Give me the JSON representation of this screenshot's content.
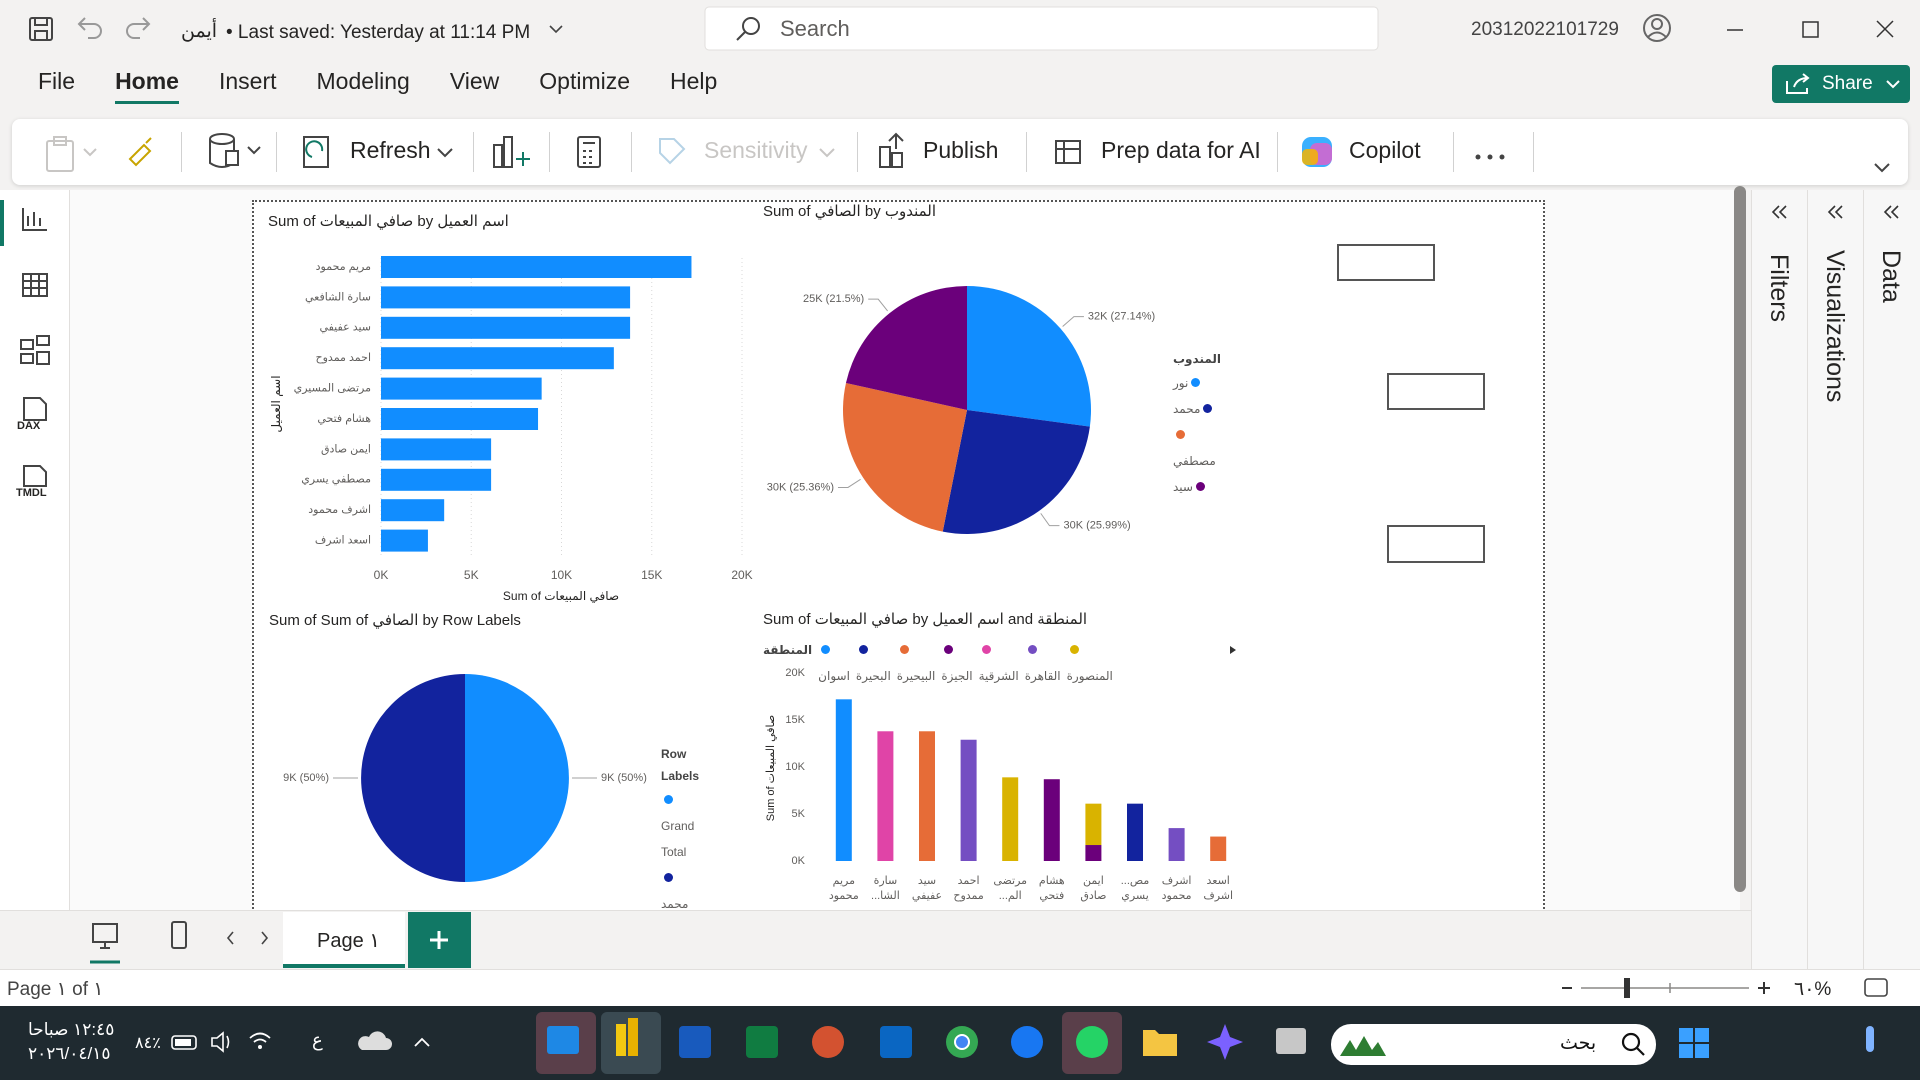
{
  "title_bar": {
    "file_name": "أيمن",
    "saved": "• Last saved: Yesterday at 11:14 PM",
    "search": "Search",
    "user": "20312022101729"
  },
  "menu": {
    "tabs": [
      "File",
      "Home",
      "Insert",
      "Modeling",
      "View",
      "Optimize",
      "Help"
    ],
    "active": 1,
    "share": "Share"
  },
  "ribbon": [
    "Refresh",
    "Sensitivity",
    "Publish",
    "Prep data for AI",
    "Copilot"
  ],
  "left_rail": {
    "dax": "DAX",
    "tmdl": "TMDL"
  },
  "panes": [
    "Filters",
    "Visualizations",
    "Data"
  ],
  "charts": [
    {
      "type": "bar",
      "orientation": "horizontal",
      "title": "Sum of صافي المبيعات by اسم العميل",
      "x_label": "Sum of صافي المبيعات",
      "y_label": "اسم العميل",
      "categories": [
        "مريم محمود",
        "سارة الشافعي",
        "سيد عفيفي",
        "احمد ممدوح",
        "مرتضى المسيري",
        "هشام فتحي",
        "ايمن صادق",
        "مصطفي يسري",
        "اشرف محمود",
        "اسعد اشرف"
      ],
      "values": [
        17200,
        13800,
        13800,
        12900,
        8900,
        8700,
        6100,
        6100,
        3500,
        2600
      ],
      "color": "#118DFF",
      "xlim": [
        0,
        20000
      ],
      "xticks": [
        {
          "value": 0,
          "label": "0K"
        },
        {
          "value": 5000,
          "label": "5K"
        },
        {
          "value": 10000,
          "label": "10K"
        },
        {
          "value": 15000,
          "label": "15K"
        },
        {
          "value": 20000,
          "label": "20K"
        }
      ],
      "grid": true
    },
    {
      "type": "pie",
      "title": "Sum of الصافي by المندوب",
      "legend_title": "المندوب",
      "categories": [
        "نور",
        "محمد",
        "مصطفي",
        "سيد"
      ],
      "values": [
        27.14,
        25.99,
        25.36,
        21.5
      ],
      "value_labels": [
        "32K (27.14%)",
        "30K (25.99%)",
        "30K (25.36%)",
        "25K (21.5%)"
      ],
      "colors": [
        "#118DFF",
        "#12239E",
        "#E66C37",
        "#6B007B"
      ]
    },
    {
      "type": "pie",
      "title": "Sum of Sum of الصافي by Row Labels",
      "legend_title": "Row Labels",
      "categories": [
        "Grand Total",
        "محمد"
      ],
      "values": [
        50,
        50
      ],
      "value_labels": [
        "9K (50%)",
        "9K (50%)"
      ],
      "colors": [
        "#118DFF",
        "#12239E"
      ]
    },
    {
      "type": "column",
      "stacked": true,
      "title": "Sum of صافي المبيعات by اسم العميل and المنطقة",
      "legend_title": "المنطقة",
      "y_label": "Sum of صافي المبيعات",
      "categories": [
        "مريم محمود",
        "سارة الشا...",
        "سيد عفيفي",
        "احمد ممدوح",
        "مرتضى الم...",
        "هشام فتحي",
        "ايمن صادق",
        "مص... يسري",
        "اشرف محمود",
        "اسعد اشرف"
      ],
      "series": [
        {
          "name": "اسوان",
          "color": "#118DFF",
          "values": [
            17200,
            null,
            null,
            null,
            null,
            null,
            null,
            null,
            null,
            null
          ]
        },
        {
          "name": "البحيرة",
          "color": "#12239E",
          "values": [
            null,
            null,
            null,
            null,
            null,
            null,
            null,
            6100,
            null,
            null
          ]
        },
        {
          "name": "البيحيرة",
          "color": "#E66C37",
          "values": [
            null,
            null,
            13800,
            null,
            null,
            null,
            null,
            null,
            null,
            2600
          ]
        },
        {
          "name": "الجيزة",
          "color": "#6B007B",
          "values": [
            null,
            null,
            null,
            null,
            null,
            8700,
            1700,
            null,
            null,
            null
          ]
        },
        {
          "name": "الشرقية",
          "color": "#E044A7",
          "values": [
            null,
            13800,
            null,
            null,
            null,
            null,
            null,
            null,
            null,
            null
          ]
        },
        {
          "name": "القاهرة",
          "color": "#744EC2",
          "values": [
            null,
            null,
            null,
            12900,
            null,
            null,
            null,
            null,
            3500,
            null
          ]
        },
        {
          "name": "المنصورة",
          "color": "#D9B300",
          "values": [
            null,
            null,
            null,
            null,
            8900,
            null,
            4400,
            null,
            null,
            null
          ]
        }
      ],
      "ylim": [
        0,
        20000
      ],
      "yticks": [
        {
          "value": 0,
          "label": "0K"
        },
        {
          "value": 5000,
          "label": "5K"
        },
        {
          "value": 10000,
          "label": "10K"
        },
        {
          "value": 15000,
          "label": "15K"
        },
        {
          "value": 20000,
          "label": "20K"
        }
      ],
      "grid": false
    }
  ],
  "page_tabs": {
    "tab": "Page ١"
  },
  "status_bar": {
    "page": "Page ١ of ١",
    "zoom": "٦٠%"
  },
  "taskbar": {
    "time": "١٢:٤٥ صباحا",
    "date": "٢٠٢٦/٠٤/١٥",
    "battery": "٨٤٪",
    "language": "ع",
    "search": "بحث"
  }
}
